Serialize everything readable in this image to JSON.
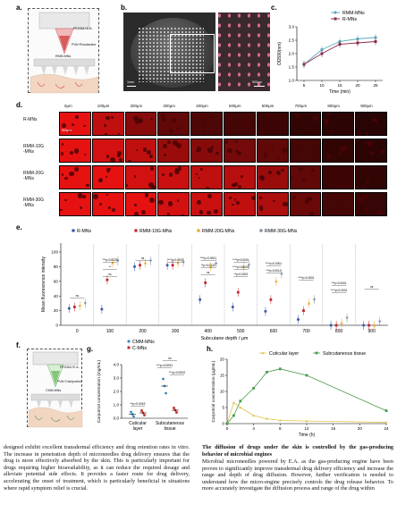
{
  "panels": {
    "a": {
      "label": "a.",
      "texts": [
        "PEGDA+E.A.",
        "PVA+Rhodamine",
        "RMM-MNs"
      ]
    },
    "b": {
      "label": "b.",
      "scale_left": "1mm",
      "scale_right": "500μm"
    },
    "c": {
      "label": "c."
    },
    "d": {
      "label": "d.",
      "depths": [
        "0μm",
        "100μm",
        "200μm",
        "300μm",
        "400μm",
        "500μm",
        "600μm",
        "700μm",
        "800μm",
        "900μm"
      ],
      "rows": [
        "R-MNs",
        "RMM-10G\n-MNs",
        "RMM-20G\n-MNs",
        "RMM-30G\n-MNs"
      ],
      "scale": "500μm"
    },
    "e": {
      "label": "e."
    },
    "f": {
      "label": "f.",
      "texts": [
        "PEGDA+E.A.",
        "PVA+Calcipotriol",
        "CMM-MNs"
      ]
    },
    "g": {
      "label": "g."
    },
    "h": {
      "label": "h."
    }
  },
  "chart_data": [
    {
      "id": "c",
      "type": "line",
      "x": [
        5,
        10,
        15,
        20,
        25
      ],
      "xlabel": "Time (min)",
      "ylabel": "OD590(nm)",
      "ylim": [
        1.0,
        3.0
      ],
      "yticks": [
        "1.0",
        "1.5",
        "2.0",
        "2.5",
        "3.0"
      ],
      "legend_position": "top-right",
      "series": [
        {
          "name": "RMM-MNs",
          "color": "#5aa9bd",
          "values": [
            1.6,
            2.15,
            2.45,
            2.55,
            2.6
          ]
        },
        {
          "name": "R-MNs",
          "color": "#8b2a4a",
          "values": [
            1.6,
            2.0,
            2.35,
            2.4,
            2.45
          ]
        }
      ]
    },
    {
      "id": "e",
      "type": "scatter",
      "categories": [
        "0",
        "100",
        "200",
        "300",
        "400",
        "500",
        "600",
        "700",
        "800",
        "900"
      ],
      "xlabel": "Subcutane depth / μm",
      "ylabel": "Mean fluorescence intensity",
      "ylim": [
        0,
        100
      ],
      "yticks": [
        "0",
        "20",
        "40",
        "60",
        "80",
        "100"
      ],
      "legend_position": "top",
      "series": [
        {
          "name": "R-MNs",
          "color": "#3a5ba8",
          "values": [
            23,
            22,
            80,
            82,
            35,
            25,
            19,
            8,
            0,
            0
          ]
        },
        {
          "name": "RMM-10G-MNs",
          "color": "#c0282d",
          "values": [
            25,
            62,
            82,
            82,
            58,
            45,
            35,
            20,
            0,
            0
          ]
        },
        {
          "name": "RMM-20G-MNs",
          "color": "#e6a52a",
          "values": [
            27,
            85,
            85,
            85,
            80,
            80,
            60,
            30,
            3,
            0
          ]
        },
        {
          "name": "RMM-30G-MNs",
          "color": "#7c8ba0",
          "values": [
            30,
            88,
            88,
            86,
            84,
            82,
            70,
            35,
            10,
            5
          ]
        }
      ],
      "annotations": [
        "ns",
        "***p=0.0033",
        "**",
        "ns",
        "ns",
        "****p=0.0001",
        "****p=0.0001",
        "**p=0.0132",
        "ns",
        "****p<0.0001",
        "****p<0.0001",
        "**p=0.0002",
        "****p=0.0001",
        "***p=0.0012",
        "****p<0.0001",
        "***p<0.0001",
        "****p=0.0001",
        "ns"
      ]
    },
    {
      "id": "g",
      "type": "scatter",
      "categories": [
        "Cuticular layer",
        "Subcutaneous tissue"
      ],
      "ylabel": "Carpotriol concentration (mg/mL)",
      "ylim": [
        0.0,
        4.0
      ],
      "yticks": [
        "0.0",
        "1.0",
        "2.0",
        "3.0",
        "4.0"
      ],
      "legend_position": "top",
      "series": [
        {
          "name": "CMM-MNs",
          "color": "#3a87c0",
          "values": [
            0.3,
            2.4
          ]
        },
        {
          "name": "C-MNs",
          "color": "#c0282d",
          "values": [
            0.4,
            0.6
          ]
        }
      ],
      "annotations": [
        "**p=0.0043",
        "***p=0.0091",
        "***p=0.0002",
        "ns"
      ]
    },
    {
      "id": "h",
      "type": "line",
      "x": [
        0,
        1,
        2,
        4,
        6,
        8,
        12,
        24
      ],
      "xticks": [
        "0",
        "4",
        "8",
        "12",
        "16",
        "20",
        "24"
      ],
      "xlabel": "Time (h)",
      "ylabel": "Carpotriol concentration (μg/mL)",
      "ylim": [
        0,
        20
      ],
      "yticks": [
        "0",
        "5",
        "10",
        "15",
        "20"
      ],
      "legend_position": "top",
      "series": [
        {
          "name": "Cuticular layer",
          "color": "#e3c34a",
          "values": [
            0,
            6.5,
            5.0,
            2.5,
            1.5,
            1.0,
            0.8,
            0.4
          ]
        },
        {
          "name": "Subcutaneous tissue",
          "color": "#4a9a4a",
          "values": [
            0,
            2.5,
            7.0,
            11.0,
            16.0,
            17.0,
            15.0,
            4.0
          ]
        }
      ]
    }
  ],
  "text": {
    "left_para": "designed exhibit excellent transdermal efficiency and drug retention rates in vitro. The increase in penetration depth of microneedles drug delivery ensures that the drug is more effectively absorbed by the skin. This is particularly important for drugs requiring higher bioavailability, as it can reduce the required dosage and alleviate potential side effects. It provides a faster route for drug delivery, accelerating the onset of treatment, which is particularly beneficial in situations where rapid symptom relief is crucial.",
    "right_heading": "The diffusion of drugs under the skin is controlled by the gas-producing behavior of microbial engines",
    "right_para": "Microbial microneedles powered by E.A. as the gas-producing engine have been proven to significantly improve transdermal drug delivery efficiency and increase the range and depth of drug diffusion. However, further verification is needed to understand how the micro-engine precisely controls the drug release behavior. To more accurately investigate the diffusion process and range of the drug within"
  }
}
